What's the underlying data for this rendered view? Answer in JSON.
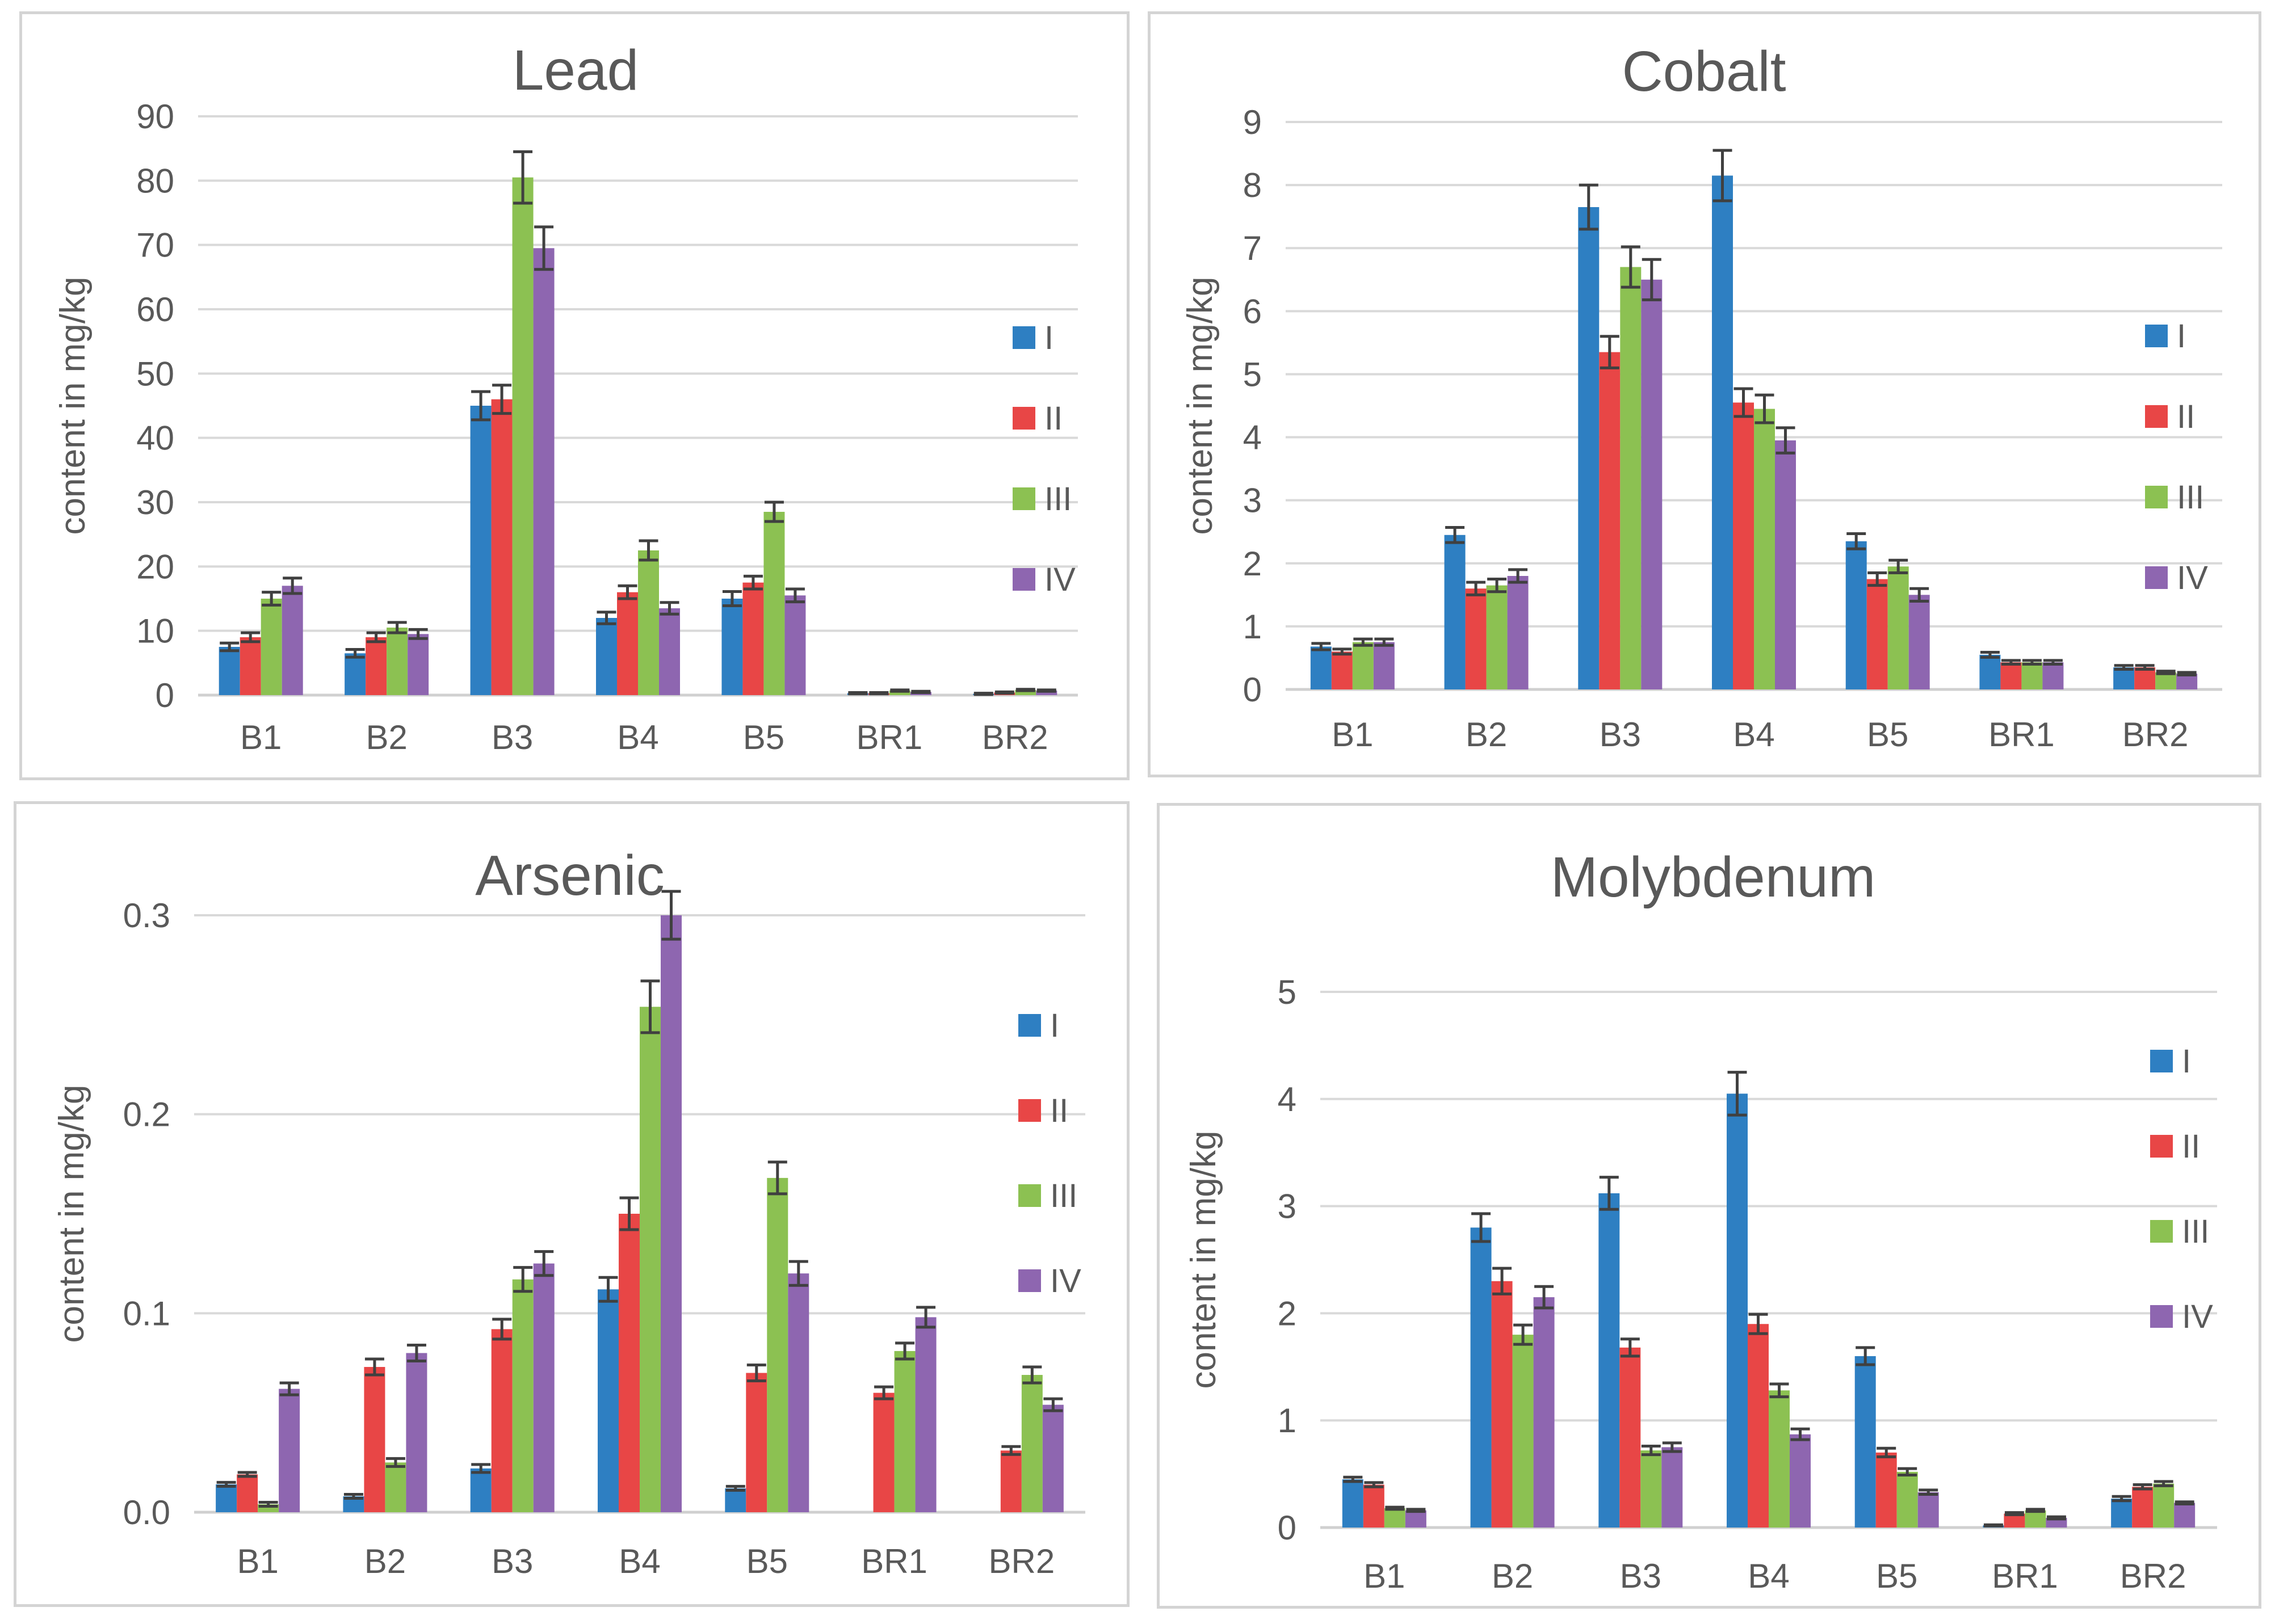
{
  "figure": {
    "series_names": [
      "I",
      "II",
      "III",
      "IV"
    ],
    "series_colors": [
      "#2e7fc2",
      "#e84646",
      "#8cc152",
      "#8e66b0"
    ]
  },
  "chart_data": [
    {
      "id": "lead",
      "type": "bar",
      "title": "Lead",
      "xlabel": "",
      "ylabel": "content in mg/kg",
      "ylim": [
        0,
        90
      ],
      "yticks": [
        0,
        10,
        20,
        30,
        40,
        50,
        60,
        70,
        80,
        90
      ],
      "ytick_labels": [
        "0",
        "10",
        "20",
        "30",
        "40",
        "50",
        "60",
        "70",
        "80",
        "90"
      ],
      "grid": true,
      "legend_position": "right",
      "categories": [
        "B1",
        "B2",
        "B3",
        "B4",
        "B5",
        "BR1",
        "BR2"
      ],
      "series": [
        {
          "name": "I",
          "values": [
            7.5,
            6.5,
            45,
            12,
            15,
            0.3,
            0.2
          ],
          "errors": [
            0.6,
            0.6,
            2.2,
            0.9,
            1.1,
            0.1,
            0.1
          ]
        },
        {
          "name": "II",
          "values": [
            9,
            9,
            46,
            16,
            17.5,
            0.3,
            0.4
          ],
          "errors": [
            0.7,
            0.7,
            2.2,
            1.0,
            1.0,
            0.1,
            0.1
          ]
        },
        {
          "name": "III",
          "values": [
            15,
            10.5,
            80.5,
            22.5,
            28.5,
            0.7,
            0.8
          ],
          "errors": [
            1.0,
            0.8,
            4.0,
            1.5,
            1.5,
            0.1,
            0.1
          ]
        },
        {
          "name": "IV",
          "values": [
            17,
            9.5,
            69.5,
            13.5,
            15.5,
            0.5,
            0.7
          ],
          "errors": [
            1.2,
            0.7,
            3.3,
            0.9,
            1.0,
            0.1,
            0.1
          ]
        }
      ]
    },
    {
      "id": "cobalt",
      "type": "bar",
      "title": "Cobalt",
      "xlabel": "",
      "ylabel": "content in mg/kg",
      "ylim": [
        0,
        9
      ],
      "yticks": [
        0,
        1,
        2,
        3,
        4,
        5,
        6,
        7,
        8,
        9
      ],
      "ytick_labels": [
        "0",
        "1",
        "2",
        "3",
        "4",
        "5",
        "6",
        "7",
        "8",
        "9"
      ],
      "grid": true,
      "legend_position": "right",
      "categories": [
        "B1",
        "B2",
        "B3",
        "B4",
        "B5",
        "BR1",
        "BR2"
      ],
      "series": [
        {
          "name": "I",
          "values": [
            0.68,
            2.45,
            7.65,
            8.15,
            2.35,
            0.55,
            0.35
          ],
          "errors": [
            0.05,
            0.12,
            0.35,
            0.4,
            0.12,
            0.04,
            0.03
          ]
        },
        {
          "name": "II",
          "values": [
            0.6,
            1.6,
            5.35,
            4.55,
            1.75,
            0.43,
            0.35
          ],
          "errors": [
            0.04,
            0.1,
            0.25,
            0.22,
            0.1,
            0.03,
            0.03
          ]
        },
        {
          "name": "III",
          "values": [
            0.75,
            1.65,
            6.7,
            4.45,
            1.95,
            0.43,
            0.27
          ],
          "errors": [
            0.05,
            0.1,
            0.32,
            0.22,
            0.1,
            0.03,
            0.02
          ]
        },
        {
          "name": "IV",
          "values": [
            0.75,
            1.8,
            6.5,
            3.95,
            1.5,
            0.43,
            0.25
          ],
          "errors": [
            0.05,
            0.1,
            0.32,
            0.2,
            0.1,
            0.03,
            0.02
          ]
        }
      ]
    },
    {
      "id": "arsenic",
      "type": "bar",
      "title": "Arsenic",
      "xlabel": "",
      "ylabel": "content in mg/kg",
      "ylim": [
        0,
        0.3
      ],
      "yticks": [
        0,
        0.1,
        0.2,
        0.3
      ],
      "ytick_labels": [
        "0.0",
        "0.1",
        "0.2",
        "0.3"
      ],
      "grid": true,
      "legend_position": "right",
      "categories": [
        "B1",
        "B2",
        "B3",
        "B4",
        "B5",
        "BR1",
        "BR2"
      ],
      "series": [
        {
          "name": "I",
          "values": [
            0.014,
            0.008,
            0.022,
            0.112,
            0.012,
            0,
            0
          ],
          "errors": [
            0.001,
            0.001,
            0.002,
            0.006,
            0.001,
            0,
            0
          ]
        },
        {
          "name": "II",
          "values": [
            0.019,
            0.073,
            0.092,
            0.15,
            0.07,
            0.06,
            0.031
          ],
          "errors": [
            0.001,
            0.004,
            0.005,
            0.008,
            0.004,
            0.003,
            0.002
          ]
        },
        {
          "name": "III",
          "values": [
            0.004,
            0.025,
            0.117,
            0.254,
            0.168,
            0.081,
            0.069
          ],
          "errors": [
            0.001,
            0.002,
            0.006,
            0.013,
            0.008,
            0.004,
            0.004
          ]
        },
        {
          "name": "IV",
          "values": [
            0.062,
            0.08,
            0.125,
            0.3,
            0.12,
            0.098,
            0.054
          ],
          "errors": [
            0.003,
            0.004,
            0.006,
            0.012,
            0.006,
            0.005,
            0.003
          ]
        }
      ]
    },
    {
      "id": "molybdenum",
      "type": "bar",
      "title": "Molybdenum",
      "xlabel": "",
      "ylabel": "content in mg/kg",
      "ylim": [
        0,
        5
      ],
      "yticks": [
        0,
        1,
        2,
        3,
        4,
        5
      ],
      "ytick_labels": [
        "0",
        "1",
        "2",
        "3",
        "4",
        "5"
      ],
      "grid": true,
      "legend_position": "right",
      "categories": [
        "B1",
        "B2",
        "B3",
        "B4",
        "B5",
        "BR1",
        "BR2"
      ],
      "series": [
        {
          "name": "I",
          "values": [
            0.45,
            2.8,
            3.12,
            4.05,
            1.6,
            0.02,
            0.27
          ],
          "errors": [
            0.02,
            0.13,
            0.15,
            0.2,
            0.08,
            0.005,
            0.02
          ]
        },
        {
          "name": "II",
          "values": [
            0.4,
            2.3,
            1.68,
            1.9,
            0.7,
            0.13,
            0.38
          ],
          "errors": [
            0.02,
            0.12,
            0.08,
            0.09,
            0.04,
            0.01,
            0.02
          ]
        },
        {
          "name": "III",
          "values": [
            0.18,
            1.8,
            0.72,
            1.28,
            0.52,
            0.16,
            0.41
          ],
          "errors": [
            0.01,
            0.09,
            0.04,
            0.06,
            0.03,
            0.01,
            0.02
          ]
        },
        {
          "name": "IV",
          "values": [
            0.16,
            2.15,
            0.75,
            0.87,
            0.33,
            0.09,
            0.23
          ],
          "errors": [
            0.01,
            0.1,
            0.04,
            0.05,
            0.02,
            0.01,
            0.01
          ]
        }
      ]
    }
  ]
}
